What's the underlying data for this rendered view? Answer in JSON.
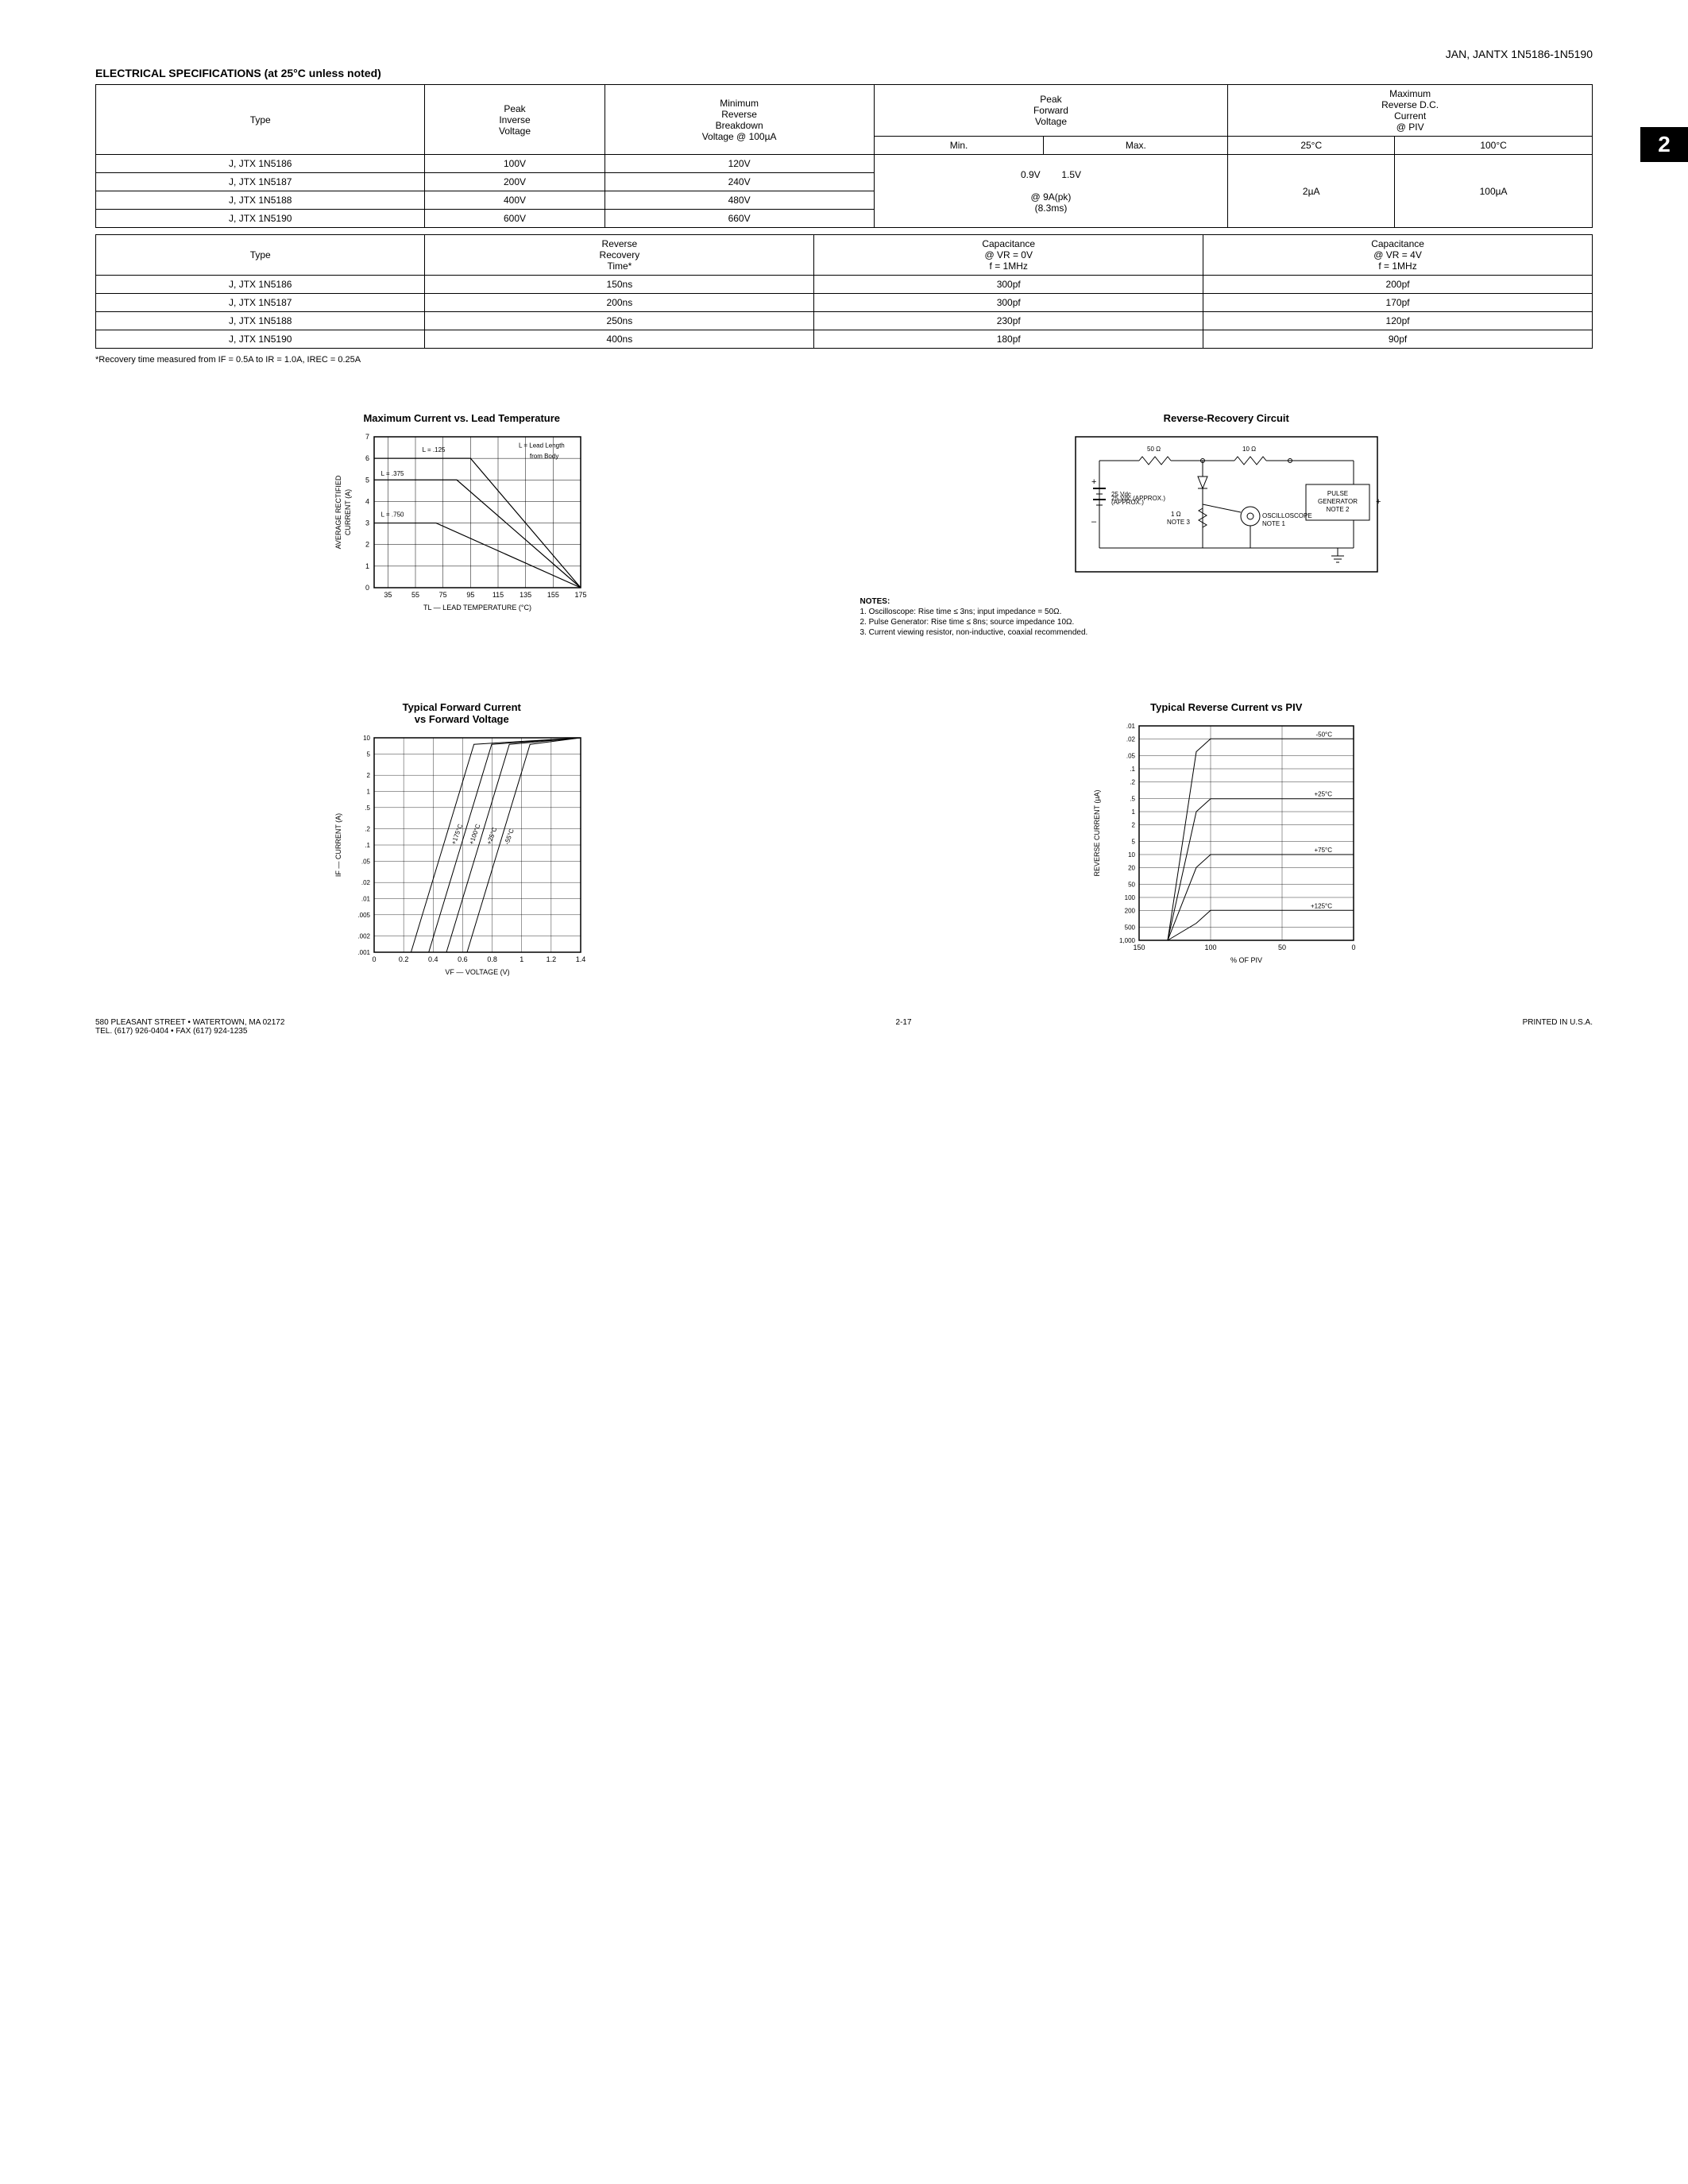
{
  "header": {
    "product_line": "JAN, JANTX 1N5186-1N5190",
    "section_title": "ELECTRICAL SPECIFICATIONS (at 25°C unless noted)",
    "tab_number": "2"
  },
  "table1": {
    "headers": {
      "type": "Type",
      "piv": "Peak\nInverse\nVoltage",
      "min_rev": "Minimum\nReverse\nBreakdown\nVoltage @ 100µA",
      "pfv": "Peak\nForward\nVoltage",
      "pfv_min": "Min.",
      "pfv_max": "Max.",
      "max_rev": "Maximum\nReverse D.C.\nCurrent\n@ PIV",
      "t25": "25°C",
      "t100": "100°C"
    },
    "rows": [
      {
        "type": "J, JTX 1N5186",
        "piv": "100V",
        "brk": "120V"
      },
      {
        "type": "J, JTX 1N5187",
        "piv": "200V",
        "brk": "240V"
      },
      {
        "type": "J, JTX 1N5188",
        "piv": "400V",
        "brk": "480V"
      },
      {
        "type": "J, JTX 1N5190",
        "piv": "600V",
        "brk": "660V"
      }
    ],
    "pfv_min_val": "0.9V",
    "pfv_max_val": "1.5V",
    "pfv_cond1": "@ 9A(pk)",
    "pfv_cond2": "(8.3ms)",
    "ir_25": "2µA",
    "ir_100": "100µA"
  },
  "table2": {
    "headers": {
      "type": "Type",
      "trr": "Reverse\nRecovery\nTime*",
      "cap0": "Capacitance\n@ VR = 0V\nf = 1MHz",
      "cap4": "Capacitance\n@ VR = 4V\nf = 1MHz"
    },
    "rows": [
      {
        "type": "J, JTX 1N5186",
        "trr": "150ns",
        "c0": "300pf",
        "c4": "200pf"
      },
      {
        "type": "J, JTX 1N5187",
        "trr": "200ns",
        "c0": "300pf",
        "c4": "170pf"
      },
      {
        "type": "J, JTX 1N5188",
        "trr": "250ns",
        "c0": "230pf",
        "c4": "120pf"
      },
      {
        "type": "J, JTX 1N5190",
        "trr": "400ns",
        "c0": "180pf",
        "c4": "90pf"
      }
    ],
    "footnote": "*Recovery time measured from IF = 0.5A to IR = 1.0A, IREC = 0.25A"
  },
  "chart1": {
    "type": "line",
    "title": "Maximum Current vs. Lead Temperature",
    "xlabel": "TL — LEAD TEMPERATURE (°C)",
    "ylabel": "AVERAGE RECTIFIED\nCURRENT (A)",
    "xlim": [
      25,
      175
    ],
    "xticks": [
      35,
      55,
      75,
      95,
      115,
      135,
      155,
      175
    ],
    "ylim": [
      0,
      7
    ],
    "yticks": [
      0,
      1,
      2,
      3,
      4,
      5,
      6,
      7
    ],
    "annotation": "L = Lead Length\nfrom Body",
    "series": [
      {
        "label": "L = .125",
        "points": [
          [
            25,
            6
          ],
          [
            95,
            6
          ],
          [
            175,
            0
          ]
        ],
        "color": "#000000"
      },
      {
        "label": "L = .375",
        "points": [
          [
            25,
            5
          ],
          [
            85,
            5
          ],
          [
            175,
            0
          ]
        ],
        "color": "#000000"
      },
      {
        "label": "L = .750",
        "points": [
          [
            25,
            3
          ],
          [
            70,
            3
          ],
          [
            175,
            0
          ]
        ],
        "color": "#000000"
      }
    ],
    "grid_color": "#000000",
    "line_width": 1.2
  },
  "circuit": {
    "title": "Reverse-Recovery Circuit",
    "r1": "50 Ω",
    "r2": "10 Ω",
    "vsrc": "25 Vdc\n(APPROX.)",
    "r3": "1 Ω\nNOTE 3",
    "pulse": "PULSE\nGENERATOR\nNOTE 2",
    "scope": "OSCILLOSCOPE\nNOTE 1",
    "notes_title": "NOTES:",
    "notes": [
      "1. Oscilloscope: Rise time ≤ 3ns; input impedance = 50Ω.",
      "2. Pulse Generator: Rise time ≤ 8ns; source impedance 10Ω.",
      "3. Current viewing resistor, non-inductive, coaxial recommended."
    ]
  },
  "chart2": {
    "type": "line",
    "title": "Typical Forward Current\nvs Forward Voltage",
    "xlabel": "VF — VOLTAGE (V)",
    "ylabel": "IF — CURRENT (A)",
    "xlim": [
      0,
      1.4
    ],
    "xticks": [
      0,
      0.2,
      0.4,
      0.6,
      0.8,
      1.0,
      1.2,
      1.4
    ],
    "yscale": "log",
    "yticks": [
      0.001,
      0.002,
      0.005,
      0.01,
      0.02,
      0.05,
      0.1,
      0.2,
      0.5,
      1,
      2,
      5,
      10
    ],
    "ytick_labels": [
      ".001",
      ".002",
      ".005",
      ".01",
      ".02",
      ".05",
      ".1",
      ".2",
      ".5",
      "1",
      "2",
      "5",
      "10"
    ],
    "series": [
      {
        "label": "+175°C",
        "color": "#000000"
      },
      {
        "label": "+100°C",
        "color": "#000000"
      },
      {
        "label": "+25°C",
        "color": "#000000"
      },
      {
        "label": "-55°C",
        "color": "#000000"
      }
    ],
    "grid_color": "#000000"
  },
  "chart3": {
    "type": "line",
    "title": "Typical Reverse Current vs PIV",
    "xlabel": "% OF PIV",
    "ylabel": "REVERSE CURRENT (µA)",
    "xlim": [
      150,
      0
    ],
    "xticks": [
      150,
      100,
      50,
      0
    ],
    "yscale": "log",
    "yticks": [
      0.01,
      0.02,
      0.05,
      0.1,
      0.2,
      0.5,
      1,
      2,
      5,
      10,
      20,
      50,
      100,
      200,
      500,
      1000
    ],
    "ytick_labels": [
      ".01",
      ".02",
      ".05",
      ".1",
      ".2",
      ".5",
      "1",
      "2",
      "5",
      "10",
      "20",
      "50",
      "100",
      "200",
      "500",
      "1,000"
    ],
    "series": [
      {
        "label": "-50°C",
        "color": "#000000"
      },
      {
        "label": "+25°C",
        "color": "#000000"
      },
      {
        "label": "+75°C",
        "color": "#000000"
      },
      {
        "label": "+125°C",
        "color": "#000000"
      }
    ],
    "grid_color": "#000000"
  },
  "footer": {
    "address": "580 PLEASANT STREET • WATERTOWN, MA 02172\nTEL. (617) 926-0404 • FAX (617) 924-1235",
    "page": "2-17",
    "printed": "PRINTED IN U.S.A."
  }
}
